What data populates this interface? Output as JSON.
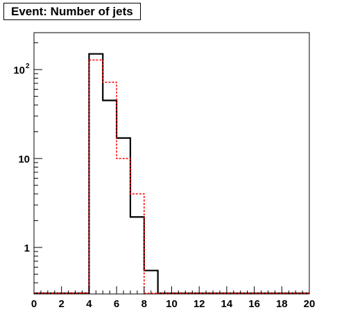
{
  "title": "Event: Number of jets",
  "chart_data": {
    "type": "histogram",
    "title": "Event: Number of jets",
    "xlabel": "",
    "ylabel": "",
    "xlim": [
      0,
      20
    ],
    "ylim": [
      0.3,
      260
    ],
    "y_scale": "log",
    "grid": false,
    "bin_edges": [
      0,
      1,
      2,
      3,
      4,
      5,
      6,
      7,
      8,
      9,
      10,
      11,
      12,
      13,
      14,
      15,
      16,
      17,
      18,
      19,
      20
    ],
    "x_ticks": [
      "0",
      "2",
      "4",
      "6",
      "8",
      "10",
      "12",
      "14",
      "16",
      "18",
      "20"
    ],
    "y_ticks": [
      {
        "value": 1,
        "label": "1"
      },
      {
        "value": 10,
        "label": "10"
      },
      {
        "value": 100,
        "label": "10",
        "sup": "2"
      }
    ],
    "series": [
      {
        "color": "#000000",
        "style": "solid",
        "values": [
          0,
          0,
          0,
          0,
          150,
          45,
          17,
          2.2,
          0.55,
          0,
          0,
          0,
          0,
          0,
          0,
          0,
          0,
          0,
          0,
          0
        ]
      },
      {
        "color": "#ff0000",
        "style": "dashed",
        "values": [
          0,
          0,
          0,
          0,
          128,
          72,
          10,
          4,
          0,
          0,
          0,
          0,
          0,
          0,
          0,
          0,
          0,
          0,
          0,
          0
        ]
      }
    ]
  }
}
